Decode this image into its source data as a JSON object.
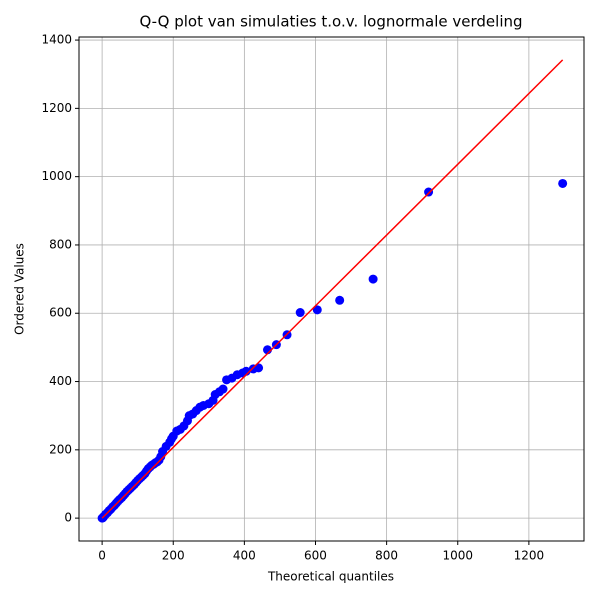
{
  "chart_data": {
    "type": "qq",
    "title": "Q-Q plot van simulaties t.o.v. lognormale verdeling",
    "xlabel": "Theoretical quantiles",
    "ylabel": "Ordered Values",
    "xlim": [
      -65,
      1355
    ],
    "ylim": [
      -67,
      1409
    ],
    "xticks": [
      0,
      200,
      400,
      600,
      800,
      1000,
      1200
    ],
    "yticks": [
      0,
      200,
      400,
      600,
      800,
      1000,
      1200,
      1400
    ],
    "grid": true,
    "points": {
      "color": "#0000ff",
      "x": [
        0,
        2,
        5,
        10,
        15,
        20,
        25,
        30,
        35,
        40,
        45,
        50,
        55,
        60,
        65,
        70,
        75,
        80,
        85,
        90,
        95,
        100,
        105,
        110,
        115,
        120,
        125,
        130,
        135,
        140,
        145,
        150,
        155,
        160,
        165,
        170,
        180,
        190,
        195,
        200,
        210,
        220,
        230,
        240,
        245,
        255,
        265,
        275,
        285,
        300,
        312,
        318,
        330,
        340,
        350,
        365,
        380,
        395,
        405,
        425,
        440,
        465,
        490,
        520,
        557,
        605,
        668,
        762,
        918,
        1295
      ],
      "y": [
        0,
        1,
        5,
        11,
        16,
        22,
        27,
        33,
        38,
        44,
        50,
        55,
        60,
        66,
        72,
        78,
        83,
        88,
        93,
        98,
        104,
        110,
        115,
        120,
        125,
        130,
        138,
        145,
        150,
        155,
        158,
        162,
        165,
        170,
        180,
        195,
        210,
        222,
        232,
        240,
        255,
        260,
        270,
        285,
        300,
        305,
        315,
        325,
        330,
        335,
        345,
        362,
        370,
        378,
        405,
        410,
        420,
        425,
        430,
        437,
        440,
        493,
        508,
        537,
        602,
        610,
        638,
        700,
        955,
        980
      ]
    },
    "fit_line": {
      "color": "#ff0000",
      "x": [
        0,
        1295
      ],
      "y": [
        0,
        1342
      ]
    }
  }
}
